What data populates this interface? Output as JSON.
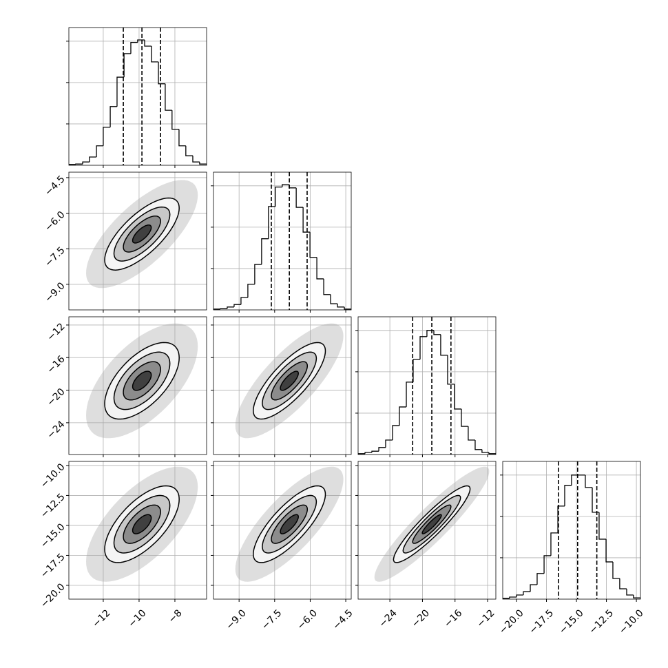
{
  "chart_data": {
    "type": "corner",
    "color": "#000000",
    "grid": true,
    "hist_ylim": [
      0,
      3.33
    ],
    "hist_yticks": [
      1,
      2,
      3
    ],
    "contour_sigmas": [
      0.5,
      1,
      1.5,
      2
    ],
    "cloud_sigma": 3,
    "rho": [
      0.72,
      0.6,
      0.78,
      0.65,
      0.78,
      0.92
    ],
    "variables": [
      {
        "lim": [
          -13.92,
          -6.23
        ],
        "mean": -9.84,
        "sd": 1.04,
        "ticks": [
          {
            "value": -12,
            "label": "−12"
          },
          {
            "value": -10,
            "label": "−10"
          },
          {
            "value": -8,
            "label": "−8"
          }
        ],
        "quantiles": [
          -10.88,
          -9.84,
          -8.8
        ],
        "bins": [
          -13.92,
          -13.54,
          -13.15,
          -12.77,
          -12.38,
          -12.0,
          -11.61,
          -11.23,
          -10.84,
          -10.46,
          -10.08,
          -9.69,
          -9.31,
          -8.92,
          -8.54,
          -8.16,
          -7.77,
          -7.39,
          -7.0,
          -6.62,
          -6.23
        ],
        "counts": [
          0.02,
          0.03,
          0.08,
          0.2,
          0.47,
          0.92,
          1.42,
          2.13,
          2.7,
          2.97,
          3.03,
          2.88,
          2.5,
          1.97,
          1.33,
          0.87,
          0.47,
          0.23,
          0.08,
          0.03
        ]
      },
      {
        "lim": [
          -10.08,
          -4.27
        ],
        "mean": -6.88,
        "sd": 0.76,
        "ticks": [
          {
            "value": -9,
            "label": "−9.0"
          },
          {
            "value": -7.5,
            "label": "−7.5"
          },
          {
            "value": -6,
            "label": "−6.0"
          },
          {
            "value": -4.5,
            "label": "−4.5"
          }
        ],
        "quantiles": [
          -7.64,
          -6.88,
          -6.13
        ],
        "bins": [
          -10.08,
          -9.79,
          -9.5,
          -9.21,
          -8.92,
          -8.63,
          -8.34,
          -8.05,
          -7.76,
          -7.47,
          -7.18,
          -6.89,
          -6.59,
          -6.3,
          -6.01,
          -5.72,
          -5.43,
          -5.14,
          -4.85,
          -4.56,
          -4.27
        ],
        "counts": [
          0.02,
          0.03,
          0.07,
          0.13,
          0.3,
          0.62,
          1.1,
          1.72,
          2.5,
          2.97,
          3.03,
          2.95,
          2.48,
          1.88,
          1.27,
          0.75,
          0.37,
          0.15,
          0.07,
          0.02
        ]
      },
      {
        "lim": [
          -27.9,
          -10.99
        ],
        "mean": -18.85,
        "sd": 2.35,
        "ticks": [
          {
            "value": -24,
            "label": "−24"
          },
          {
            "value": -20,
            "label": "−20"
          },
          {
            "value": -16,
            "label": "−16"
          },
          {
            "value": -12,
            "label": "−12"
          }
        ],
        "quantiles": [
          -21.2,
          -18.85,
          -16.5
        ],
        "bins": [
          -27.9,
          -27.05,
          -26.21,
          -25.36,
          -24.52,
          -23.67,
          -22.83,
          -21.98,
          -21.14,
          -20.29,
          -19.45,
          -18.6,
          -17.76,
          -16.91,
          -16.07,
          -15.22,
          -14.38,
          -13.53,
          -12.69,
          -11.84,
          -10.99
        ],
        "counts": [
          0.02,
          0.05,
          0.08,
          0.17,
          0.35,
          0.7,
          1.15,
          1.75,
          2.3,
          2.85,
          3.0,
          2.9,
          2.4,
          1.7,
          1.1,
          0.68,
          0.35,
          0.12,
          0.05,
          0.02
        ]
      },
      {
        "lim": [
          -21.15,
          -9.66
        ],
        "mean": -14.9,
        "sd": 1.6,
        "ticks": [
          {
            "value": -20,
            "label": "−20.0"
          },
          {
            "value": -17.5,
            "label": "−17.5"
          },
          {
            "value": -15,
            "label": "−15.0"
          },
          {
            "value": -12.5,
            "label": "−12.5"
          },
          {
            "value": -10,
            "label": "−10.0"
          }
        ],
        "quantiles": [
          -16.5,
          -14.9,
          -13.3
        ],
        "bins": [
          -21.15,
          -20.58,
          -20.0,
          -19.43,
          -18.85,
          -18.28,
          -17.7,
          -17.13,
          -16.55,
          -15.98,
          -15.41,
          -14.83,
          -14.26,
          -13.68,
          -13.11,
          -12.53,
          -11.96,
          -11.39,
          -10.81,
          -10.24,
          -9.66
        ],
        "counts": [
          0.02,
          0.05,
          0.1,
          0.18,
          0.35,
          0.62,
          1.05,
          1.6,
          2.25,
          2.75,
          3.0,
          3.0,
          2.7,
          2.1,
          1.45,
          0.9,
          0.5,
          0.25,
          0.1,
          0.03
        ]
      }
    ]
  }
}
